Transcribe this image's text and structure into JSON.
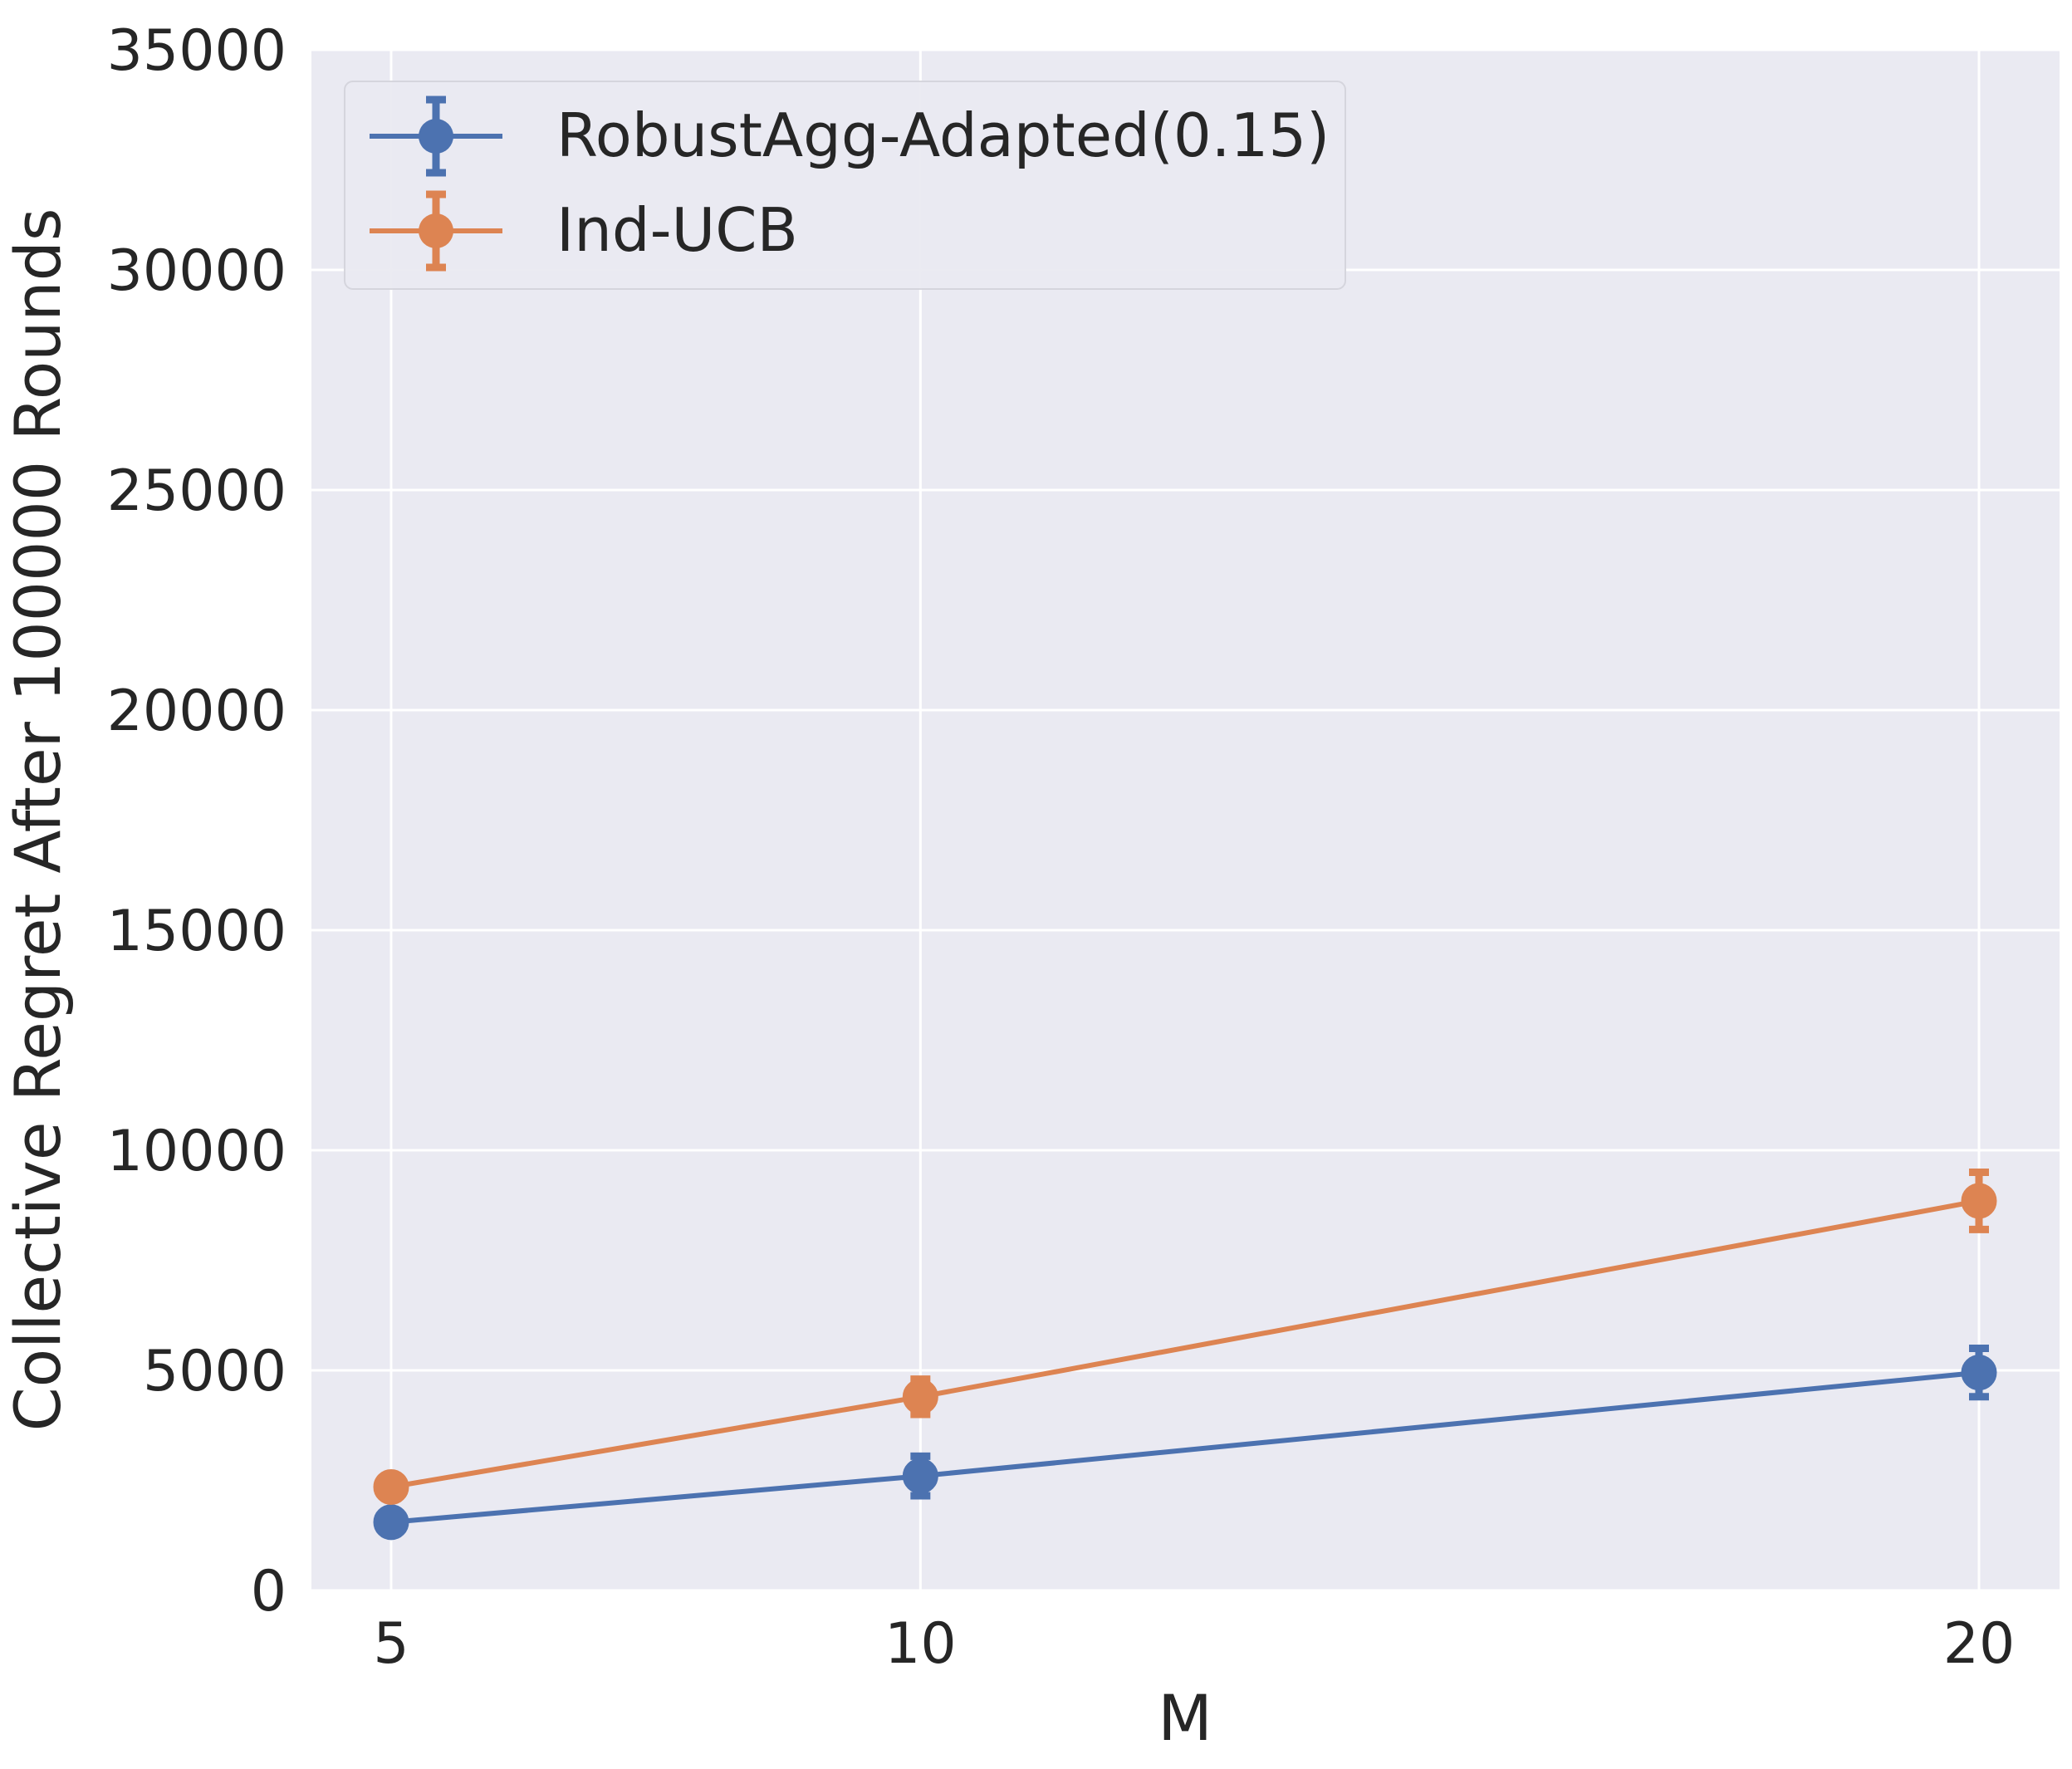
{
  "chart_data": {
    "type": "line",
    "title": "",
    "xlabel": "M",
    "ylabel": "Collective Regret After 100000 Rounds",
    "x": [
      5,
      10,
      20
    ],
    "xticks": [
      "5",
      "10",
      "20"
    ],
    "xlim": [
      4.25,
      20.75
    ],
    "ylim": [
      0,
      35000
    ],
    "yticks": [
      "0",
      "5000",
      "10000",
      "15000",
      "20000",
      "25000",
      "30000",
      "35000"
    ],
    "ytick_values": [
      0,
      5000,
      10000,
      15000,
      20000,
      25000,
      30000,
      35000
    ],
    "grid": true,
    "legend_position": "top-left",
    "series": [
      {
        "name": "RobustAgg-Adapted(0.15)",
        "color": "#4c72b0",
        "values": [
          1550,
          2600,
          4950
        ],
        "errors": [
          150,
          450,
          550
        ]
      },
      {
        "name": "Ind-UCB",
        "color": "#dd8452",
        "values": [
          2350,
          4400,
          8850
        ],
        "errors": [
          150,
          400,
          650
        ]
      }
    ]
  }
}
